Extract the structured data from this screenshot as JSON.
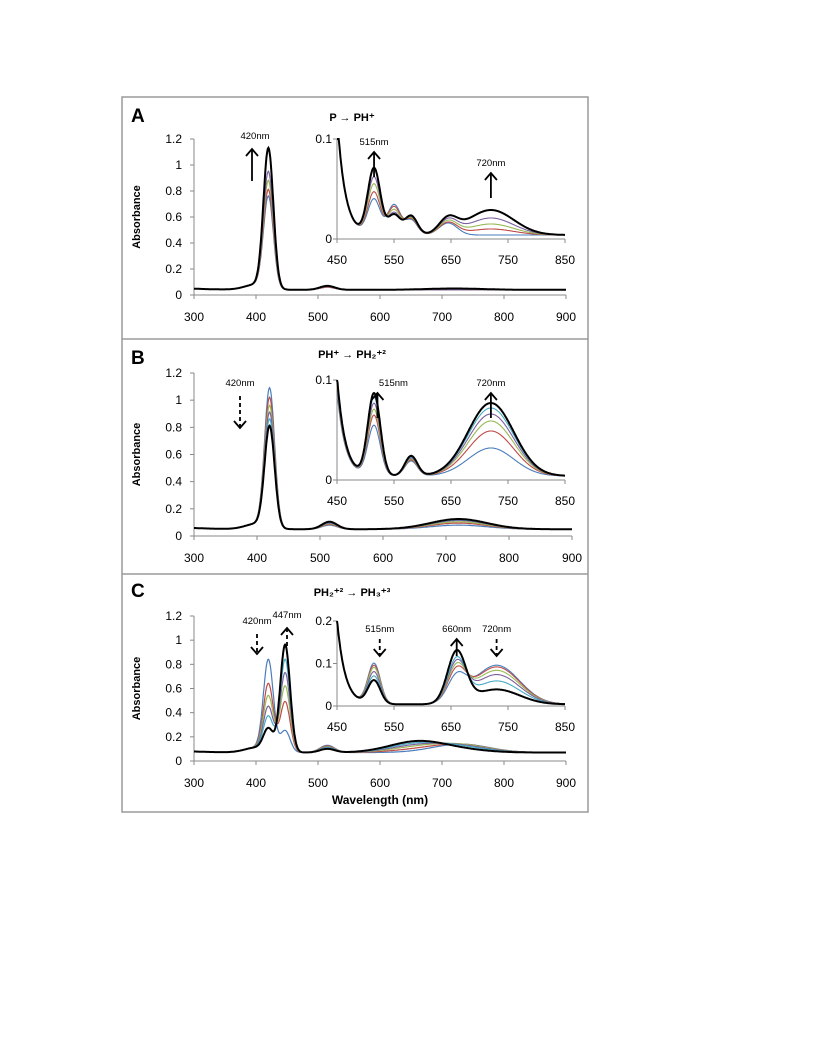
{
  "figure": {
    "x_axis_label": "Wavelength (nm)",
    "y_axis_label": "Absorbance",
    "colors": {
      "final": "#000000",
      "series": [
        "#4a7ebb",
        "#be4b48",
        "#98b954",
        "#7d60a0",
        "#46aac5",
        "#f79646",
        "#8eb4e3",
        "#d99694",
        "#c3d69b"
      ]
    }
  },
  "chart_data": [
    {
      "panel": "A",
      "type": "line",
      "title": "P → PH⁺",
      "xlim": [
        300,
        900
      ],
      "xticks": [
        300,
        400,
        500,
        600,
        700,
        800,
        900
      ],
      "ylim": [
        0,
        1.2
      ],
      "yticks": [
        "0",
        "0.2",
        "0.4",
        "0.6",
        "0.8",
        "1",
        "1.2"
      ],
      "ylabel": "Absorbance",
      "annotations": [
        {
          "text": "420nm",
          "x": 420,
          "arrow": "up"
        }
      ],
      "series": [
        {
          "peaks": [
            [
              420,
              0.7
            ],
            [
              515,
              0.02
            ]
          ],
          "baseline": 0.04
        },
        {
          "peaks": [
            [
              420,
              0.75
            ],
            [
              515,
              0.02
            ]
          ],
          "baseline": 0.04
        },
        {
          "peaks": [
            [
              420,
              0.82
            ],
            [
              515,
              0.025
            ]
          ],
          "baseline": 0.04
        },
        {
          "peaks": [
            [
              420,
              0.89
            ],
            [
              515,
              0.025
            ]
          ],
          "baseline": 0.04
        },
        {
          "peaks": [
            [
              420,
              1.07
            ],
            [
              515,
              0.03
            ],
            [
              720,
              0.01
            ]
          ],
          "baseline": 0.04,
          "final": true
        }
      ],
      "inset": {
        "xlim": [
          450,
          850
        ],
        "xticks": [
          450,
          550,
          650,
          750,
          850
        ],
        "ylim": [
          0,
          0.1
        ],
        "yticks": [
          "0",
          "0.1"
        ],
        "annotations": [
          {
            "text": "515nm",
            "x": 515,
            "arrow": "up"
          },
          {
            "text": "720nm",
            "x": 720,
            "arrow": "up"
          }
        ],
        "series": [
          {
            "peaks": [
              [
                515,
                0.035
              ],
              [
                550,
                0.03
              ],
              [
                580,
                0.015
              ],
              [
                645,
                0.012
              ],
              [
                720,
                0.0
              ]
            ]
          },
          {
            "peaks": [
              [
                515,
                0.042
              ],
              [
                550,
                0.028
              ],
              [
                580,
                0.016
              ],
              [
                645,
                0.012
              ],
              [
                720,
                0.006
              ]
            ]
          },
          {
            "peaks": [
              [
                515,
                0.05
              ],
              [
                550,
                0.025
              ],
              [
                580,
                0.017
              ],
              [
                645,
                0.013
              ],
              [
                720,
                0.011
              ]
            ]
          },
          {
            "peaks": [
              [
                515,
                0.057
              ],
              [
                550,
                0.022
              ],
              [
                580,
                0.018
              ],
              [
                645,
                0.014
              ],
              [
                720,
                0.017
              ]
            ]
          },
          {
            "peaks": [
              [
                515,
                0.066
              ],
              [
                550,
                0.02
              ],
              [
                580,
                0.019
              ],
              [
                645,
                0.015
              ],
              [
                720,
                0.025
              ]
            ],
            "final": true
          }
        ]
      }
    },
    {
      "panel": "B",
      "type": "line",
      "title": "PH⁺ → PH₂⁺²",
      "xlim": [
        300,
        900
      ],
      "xticks": [
        300,
        400,
        500,
        600,
        700,
        800,
        900
      ],
      "ylim": [
        0,
        1.2
      ],
      "yticks": [
        "0",
        "0.2",
        "0.4",
        "0.6",
        "0.8",
        "1",
        "1.2"
      ],
      "ylabel": "Absorbance",
      "annotations": [
        {
          "text": "420nm",
          "x": 420,
          "arrow": "down-dashed"
        }
      ],
      "series": [
        {
          "peaks": [
            [
              420,
              1.02
            ],
            [
              515,
              0.03
            ],
            [
              720,
              0.03
            ]
          ],
          "baseline": 0.05
        },
        {
          "peaks": [
            [
              420,
              0.95
            ],
            [
              515,
              0.035
            ],
            [
              720,
              0.045
            ]
          ],
          "baseline": 0.05
        },
        {
          "peaks": [
            [
              420,
              0.89
            ],
            [
              515,
              0.04
            ],
            [
              720,
              0.055
            ]
          ],
          "baseline": 0.05
        },
        {
          "peaks": [
            [
              420,
              0.84
            ],
            [
              515,
              0.045
            ],
            [
              720,
              0.065
            ]
          ],
          "baseline": 0.05
        },
        {
          "peaks": [
            [
              420,
              0.79
            ],
            [
              515,
              0.05
            ],
            [
              720,
              0.07
            ]
          ],
          "baseline": 0.05
        },
        {
          "peaks": [
            [
              420,
              0.74
            ],
            [
              515,
              0.055
            ],
            [
              720,
              0.075
            ]
          ],
          "baseline": 0.05,
          "final": true
        }
      ],
      "inset": {
        "xlim": [
          450,
          850
        ],
        "xticks": [
          450,
          550,
          650,
          750,
          850
        ],
        "ylim": [
          0,
          0.1
        ],
        "yticks": [
          "0",
          "0.1"
        ],
        "annotations": [
          {
            "text": "515nm",
            "x": 535,
            "arrow": "up"
          },
          {
            "text": "720nm",
            "x": 720,
            "arrow": "up"
          }
        ],
        "series": [
          {
            "peaks": [
              [
                515,
                0.05
              ],
              [
                580,
                0.015
              ],
              [
                720,
                0.028
              ]
            ],
            "edge": 0.085
          },
          {
            "peaks": [
              [
                515,
                0.06
              ],
              [
                580,
                0.016
              ],
              [
                720,
                0.045
              ]
            ],
            "edge": 0.09
          },
          {
            "peaks": [
              [
                515,
                0.066
              ],
              [
                580,
                0.017
              ],
              [
                720,
                0.055
              ]
            ],
            "edge": 0.092
          },
          {
            "peaks": [
              [
                515,
                0.072
              ],
              [
                580,
                0.018
              ],
              [
                720,
                0.062
              ]
            ],
            "edge": 0.095
          },
          {
            "peaks": [
              [
                515,
                0.078
              ],
              [
                580,
                0.019
              ],
              [
                720,
                0.068
              ]
            ],
            "edge": 0.097
          },
          {
            "peaks": [
              [
                515,
                0.082
              ],
              [
                580,
                0.02
              ],
              [
                720,
                0.073
              ]
            ],
            "edge": 0.1,
            "final": true
          }
        ]
      }
    },
    {
      "panel": "C",
      "type": "line",
      "title": "PH₂⁺² → PH₃⁺³",
      "xlim": [
        300,
        900
      ],
      "xticks": [
        300,
        400,
        500,
        600,
        700,
        800,
        900
      ],
      "ylim": [
        0,
        1.2
      ],
      "yticks": [
        "0",
        "0.2",
        "0.4",
        "0.6",
        "0.8",
        "1",
        "1.2"
      ],
      "xlabel": "Wavelength (nm)",
      "ylabel": "Absorbance",
      "annotations": [
        {
          "text": "420nm",
          "x": 420,
          "arrow": "down-dashed"
        },
        {
          "text": "447nm",
          "x": 447,
          "arrow": "up-dashed"
        }
      ],
      "series": [
        {
          "peaks": [
            [
              420,
              0.75
            ],
            [
              447,
              0.18
            ],
            [
              515,
              0.06
            ],
            [
              730,
              0.07
            ]
          ],
          "baseline": 0.07
        },
        {
          "peaks": [
            [
              420,
              0.55
            ],
            [
              447,
              0.42
            ],
            [
              515,
              0.055
            ],
            [
              660,
              0.02
            ],
            [
              730,
              0.065
            ]
          ],
          "baseline": 0.07
        },
        {
          "peaks": [
            [
              420,
              0.45
            ],
            [
              447,
              0.55
            ],
            [
              515,
              0.05
            ],
            [
              660,
              0.04
            ],
            [
              730,
              0.06
            ]
          ],
          "baseline": 0.07
        },
        {
          "peaks": [
            [
              420,
              0.36
            ],
            [
              447,
              0.66
            ],
            [
              515,
              0.045
            ],
            [
              660,
              0.055
            ],
            [
              730,
              0.05
            ]
          ],
          "baseline": 0.07
        },
        {
          "peaks": [
            [
              420,
              0.28
            ],
            [
              447,
              0.77
            ],
            [
              515,
              0.04
            ],
            [
              660,
              0.07
            ],
            [
              730,
              0.04
            ]
          ],
          "baseline": 0.07
        },
        {
          "peaks": [
            [
              420,
              0.18
            ],
            [
              447,
              0.89
            ],
            [
              515,
              0.03
            ],
            [
              660,
              0.09
            ],
            [
              730,
              0.02
            ]
          ],
          "baseline": 0.07,
          "final": true
        }
      ],
      "inset": {
        "xlim": [
          450,
          850
        ],
        "xticks": [
          450,
          550,
          650,
          750,
          850
        ],
        "ylim": [
          0,
          0.2
        ],
        "yticks": [
          "0",
          "0.1",
          "0.2"
        ],
        "annotations": [
          {
            "text": "515nm",
            "x": 525,
            "arrow": "down-dashed"
          },
          {
            "text": "660nm",
            "x": 660,
            "arrow": "up"
          },
          {
            "text": "720nm",
            "x": 730,
            "arrow": "down-dashed"
          }
        ],
        "series": [
          {
            "peaks": [
              [
                515,
                0.095
              ],
              [
                660,
                0.055
              ],
              [
                730,
                0.092
              ]
            ],
            "edge": 0.2
          },
          {
            "peaks": [
              [
                515,
                0.09
              ],
              [
                660,
                0.07
              ],
              [
                730,
                0.088
              ]
            ],
            "edge": 0.2
          },
          {
            "peaks": [
              [
                515,
                0.085
              ],
              [
                660,
                0.08
              ],
              [
                730,
                0.08
              ]
            ],
            "edge": 0.2
          },
          {
            "peaks": [
              [
                515,
                0.075
              ],
              [
                660,
                0.09
              ],
              [
                730,
                0.07
              ]
            ],
            "edge": 0.2
          },
          {
            "peaks": [
              [
                515,
                0.065
              ],
              [
                660,
                0.1
              ],
              [
                730,
                0.055
              ]
            ],
            "edge": 0.2
          },
          {
            "peaks": [
              [
                515,
                0.055
              ],
              [
                660,
                0.12
              ],
              [
                730,
                0.035
              ]
            ],
            "edge": 0.2,
            "final": true
          }
        ]
      }
    }
  ]
}
